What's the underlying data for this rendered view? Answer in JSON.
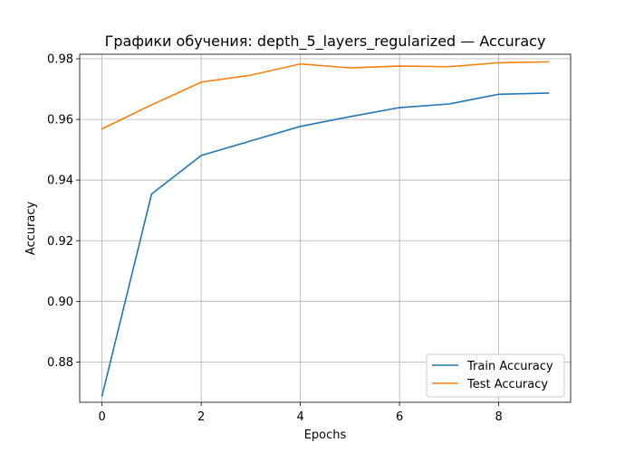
{
  "chart_data": {
    "type": "line",
    "title": "Графики обучения: depth_5_layers_regularized — Accuracy",
    "xlabel": "Epochs",
    "ylabel": "Accuracy",
    "xlim": [
      -0.45,
      9.45
    ],
    "ylim": [
      0.8667,
      0.9815
    ],
    "x_ticks": [
      0,
      2,
      4,
      6,
      8
    ],
    "x_tick_labels": [
      "0",
      "2",
      "4",
      "6",
      "8"
    ],
    "y_ticks": [
      0.88,
      0.9,
      0.92,
      0.94,
      0.96,
      0.98
    ],
    "y_tick_labels": [
      "0.88",
      "0.90",
      "0.92",
      "0.94",
      "0.96",
      "0.98"
    ],
    "grid": true,
    "legend_position": "lower-right",
    "x": [
      0,
      1,
      2,
      3,
      4,
      5,
      6,
      7,
      8,
      9
    ],
    "series": [
      {
        "name": "Train Accuracy",
        "color": "#1f77b4",
        "values": [
          0.8688,
          0.9354,
          0.9481,
          0.9529,
          0.9577,
          0.9609,
          0.9639,
          0.9651,
          0.9683,
          0.9687
        ]
      },
      {
        "name": "Test Accuracy",
        "color": "#ff7f0e",
        "values": [
          0.9569,
          0.9648,
          0.9723,
          0.9746,
          0.9783,
          0.977,
          0.9776,
          0.9774,
          0.9787,
          0.979
        ]
      }
    ]
  }
}
